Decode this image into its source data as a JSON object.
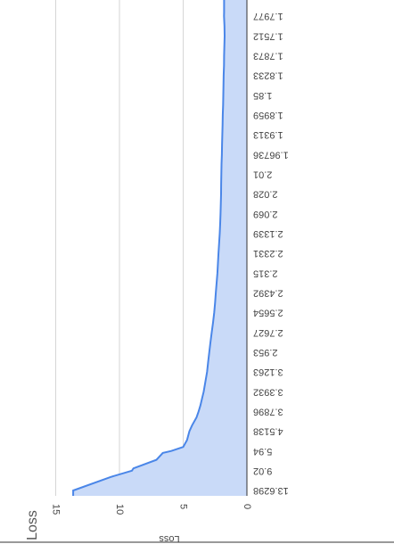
{
  "page": {
    "side_title": "Loss"
  },
  "chart_data": {
    "type": "area",
    "title": "",
    "xlabel": "",
    "ylabel": "Loss",
    "ylim": [
      0,
      15
    ],
    "y_ticks": [
      0,
      5,
      10,
      15
    ],
    "grid": true,
    "categories": [
      "13.6298",
      "9.02",
      "5.94",
      "4.5138",
      "3.7896",
      "3.3932",
      "3.1263",
      "2.953",
      "2.7627",
      "2.5654",
      "2.4392",
      "2.315",
      "2.2331",
      "2.1339",
      "2.069",
      "2.028",
      "2.01",
      "1.96736",
      "1.9313",
      "1.8959",
      "1.85",
      "1.8233",
      "1.7873",
      "1.7512",
      "1.7977"
    ],
    "series": [
      {
        "name": "",
        "color": "#4a86e8",
        "fill": "#c9daf8",
        "points": [
          [
            0,
            13.6298
          ],
          [
            0.68,
            10.7
          ],
          [
            1.0,
            9.02
          ],
          [
            1.12,
            8.9
          ],
          [
            1.55,
            7.1
          ],
          [
            1.9,
            6.6
          ],
          [
            2.0,
            5.94
          ],
          [
            2.2,
            5.0
          ],
          [
            2.55,
            4.7
          ],
          [
            3.0,
            4.5138
          ],
          [
            3.3,
            4.3
          ],
          [
            3.7,
            3.95
          ],
          [
            4.0,
            3.7896
          ],
          [
            4.3,
            3.65
          ],
          [
            4.7,
            3.5
          ],
          [
            5.0,
            3.3932
          ],
          [
            5.5,
            3.26
          ],
          [
            6.0,
            3.1263
          ],
          [
            6.5,
            3.04
          ],
          [
            7.0,
            2.953
          ],
          [
            7.5,
            2.86
          ],
          [
            8.0,
            2.7627
          ],
          [
            8.5,
            2.66
          ],
          [
            9.0,
            2.5654
          ],
          [
            9.5,
            2.5
          ],
          [
            10.0,
            2.4392
          ],
          [
            10.5,
            2.38
          ],
          [
            11.0,
            2.315
          ],
          [
            11.5,
            2.27
          ],
          [
            12.0,
            2.2331
          ],
          [
            12.5,
            2.18
          ],
          [
            13.0,
            2.1339
          ],
          [
            13.5,
            2.1
          ],
          [
            14.0,
            2.069
          ],
          [
            14.5,
            2.048
          ],
          [
            15.0,
            2.028
          ],
          [
            15.5,
            2.02
          ],
          [
            16.0,
            2.01
          ],
          [
            16.5,
            1.99
          ],
          [
            17.0,
            1.96736
          ],
          [
            17.5,
            1.95
          ],
          [
            18.0,
            1.9313
          ],
          [
            18.5,
            1.91
          ],
          [
            19.0,
            1.8959
          ],
          [
            19.5,
            1.87
          ],
          [
            20.0,
            1.85
          ],
          [
            20.5,
            1.84
          ],
          [
            21.0,
            1.8233
          ],
          [
            21.5,
            1.8
          ],
          [
            22.0,
            1.7873
          ],
          [
            22.5,
            1.77
          ],
          [
            23.0,
            1.7512
          ],
          [
            23.5,
            1.76
          ],
          [
            24.0,
            1.7977
          ],
          [
            24.2,
            1.79
          ]
        ]
      }
    ]
  }
}
